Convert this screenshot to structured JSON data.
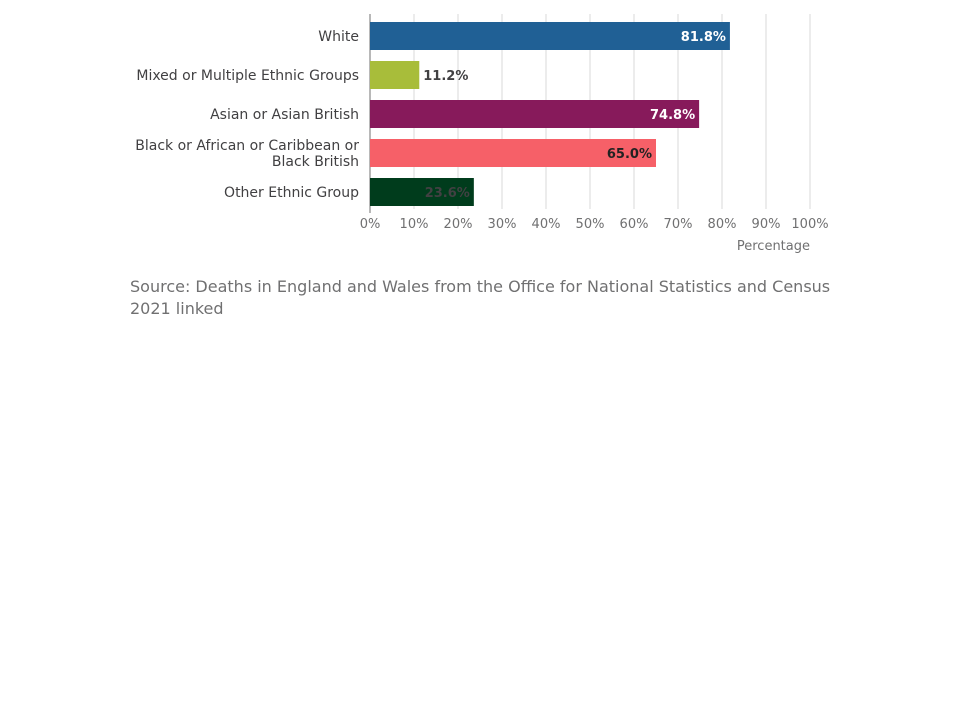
{
  "chart_data": {
    "type": "bar",
    "orientation": "horizontal",
    "categories": [
      [
        "White"
      ],
      [
        "Mixed or Multiple Ethnic Groups"
      ],
      [
        "Asian or Asian British"
      ],
      [
        "Black or African or Caribbean or",
        "Black British"
      ],
      [
        "Other Ethnic Group"
      ]
    ],
    "values": [
      81.8,
      11.2,
      74.8,
      65.0,
      23.6
    ],
    "value_labels": [
      "81.8%",
      "11.2%",
      "74.8%",
      "65.0%",
      "23.6%"
    ],
    "bar_colors": [
      "#206095",
      "#A8BD3A",
      "#871A5B",
      "#F66068",
      "#003C1C"
    ],
    "label_colors_inside": [
      "#ffffff",
      "#414042",
      "#ffffff",
      "#222222",
      "#414042"
    ],
    "xlim": [
      0,
      100
    ],
    "xticks": [
      0,
      10,
      20,
      30,
      40,
      50,
      60,
      70,
      80,
      90,
      100
    ],
    "xtick_labels": [
      "0%",
      "10%",
      "20%",
      "30%",
      "40%",
      "50%",
      "60%",
      "70%",
      "80%",
      "90%",
      "100%"
    ],
    "xlabel": "Percentage",
    "grid": true
  },
  "source_text": "Source: Deaths in England and Wales from the Office for National Statistics and Census 2021 linked"
}
